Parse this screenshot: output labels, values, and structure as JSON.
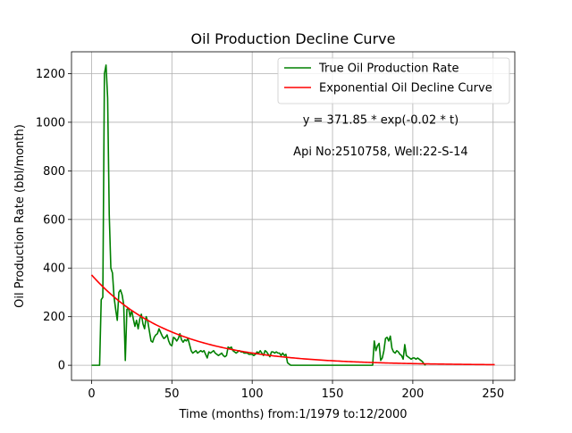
{
  "chart_data": {
    "type": "line",
    "title": "Oil Production Decline Curve",
    "xlabel": "Time (months) from:1/1979 to:12/2000",
    "ylabel": "Oil Production Rate (bbl/month)",
    "xlim": [
      -12.5,
      263.5
    ],
    "ylim": [
      -62,
      1290
    ],
    "xticks": [
      0,
      50,
      100,
      150,
      200,
      250
    ],
    "yticks": [
      0,
      200,
      400,
      600,
      800,
      1000,
      1200
    ],
    "grid": true,
    "legend_position": "top-right",
    "annotations": [
      {
        "text": "y = 371.85 * exp(-0.02 * t)",
        "x": 180,
        "y": 1010
      },
      {
        "text": "Api No:2510758, Well:22-S-14",
        "x": 180,
        "y": 880
      }
    ],
    "series": [
      {
        "name": "True Oil Production Rate",
        "color": "#008000",
        "x": [
          0,
          1,
          2,
          3,
          4,
          5,
          6,
          7,
          8,
          9,
          10,
          11,
          12,
          13,
          14,
          15,
          16,
          17,
          18,
          19,
          20,
          21,
          22,
          23,
          24,
          25,
          26,
          27,
          28,
          29,
          30,
          31,
          32,
          33,
          34,
          35,
          36,
          37,
          38,
          39,
          40,
          41,
          42,
          43,
          44,
          45,
          46,
          47,
          48,
          49,
          50,
          51,
          52,
          53,
          54,
          55,
          56,
          57,
          58,
          59,
          60,
          61,
          62,
          63,
          64,
          65,
          66,
          67,
          68,
          69,
          70,
          71,
          72,
          73,
          74,
          75,
          76,
          77,
          78,
          79,
          80,
          81,
          82,
          83,
          84,
          85,
          86,
          87,
          88,
          89,
          90,
          91,
          92,
          93,
          94,
          95,
          96,
          97,
          98,
          99,
          100,
          101,
          102,
          103,
          104,
          105,
          106,
          107,
          108,
          109,
          110,
          111,
          112,
          113,
          114,
          115,
          116,
          117,
          118,
          119,
          120,
          121,
          122,
          123,
          124,
          125,
          126,
          127,
          128,
          129,
          130,
          131,
          132,
          133,
          134,
          135,
          136,
          137,
          138,
          139,
          140,
          141,
          142,
          143,
          144,
          145,
          146,
          147,
          148,
          149,
          150,
          151,
          152,
          153,
          154,
          155,
          156,
          157,
          158,
          159,
          160,
          161,
          162,
          163,
          164,
          165,
          166,
          167,
          168,
          169,
          170,
          171,
          172,
          173,
          174,
          175,
          176,
          177,
          178,
          179,
          180,
          181,
          182,
          183,
          184,
          185,
          186,
          187,
          188,
          189,
          190,
          191,
          192,
          193,
          194,
          195,
          196,
          197,
          198,
          199,
          200,
          201,
          202,
          203,
          204,
          205,
          206,
          207,
          208
        ],
        "y": [
          0,
          0,
          0,
          0,
          0,
          0,
          270,
          280,
          1200,
          1235,
          1100,
          620,
          400,
          380,
          280,
          230,
          185,
          300,
          310,
          290,
          250,
          20,
          230,
          235,
          200,
          225,
          190,
          160,
          185,
          150,
          190,
          210,
          170,
          150,
          200,
          180,
          140,
          100,
          95,
          115,
          125,
          130,
          150,
          135,
          120,
          110,
          115,
          125,
          100,
          85,
          80,
          115,
          110,
          100,
          110,
          130,
          105,
          95,
          105,
          100,
          110,
          85,
          60,
          50,
          55,
          60,
          50,
          55,
          60,
          55,
          60,
          45,
          30,
          55,
          50,
          55,
          60,
          50,
          45,
          40,
          45,
          50,
          40,
          35,
          40,
          75,
          70,
          75,
          60,
          55,
          50,
          55,
          60,
          55,
          55,
          50,
          50,
          50,
          45,
          45,
          45,
          40,
          45,
          55,
          50,
          60,
          50,
          40,
          60,
          55,
          45,
          35,
          55,
          55,
          50,
          55,
          50,
          50,
          40,
          50,
          40,
          45,
          10,
          5,
          0,
          0,
          0,
          0,
          0,
          0,
          0,
          0,
          0,
          0,
          0,
          0,
          0,
          0,
          0,
          0,
          0,
          0,
          0,
          0,
          0,
          0,
          0,
          0,
          0,
          0,
          0,
          0,
          0,
          0,
          0,
          0,
          0,
          0,
          0,
          0,
          0,
          0,
          0,
          0,
          0,
          0,
          0,
          0,
          0,
          0,
          0,
          0,
          0,
          0,
          0,
          0,
          100,
          60,
          80,
          90,
          20,
          30,
          60,
          110,
          115,
          100,
          120,
          70,
          55,
          50,
          60,
          55,
          45,
          40,
          25,
          85,
          40,
          35,
          30,
          25,
          30,
          30,
          25,
          30,
          25,
          20,
          15,
          5,
          0
        ]
      },
      {
        "name": "Exponential Oil Decline Curve",
        "color": "#ff0000",
        "model": {
          "a": 371.85,
          "b": -0.02,
          "x_start": 0,
          "x_end": 251
        }
      }
    ]
  }
}
